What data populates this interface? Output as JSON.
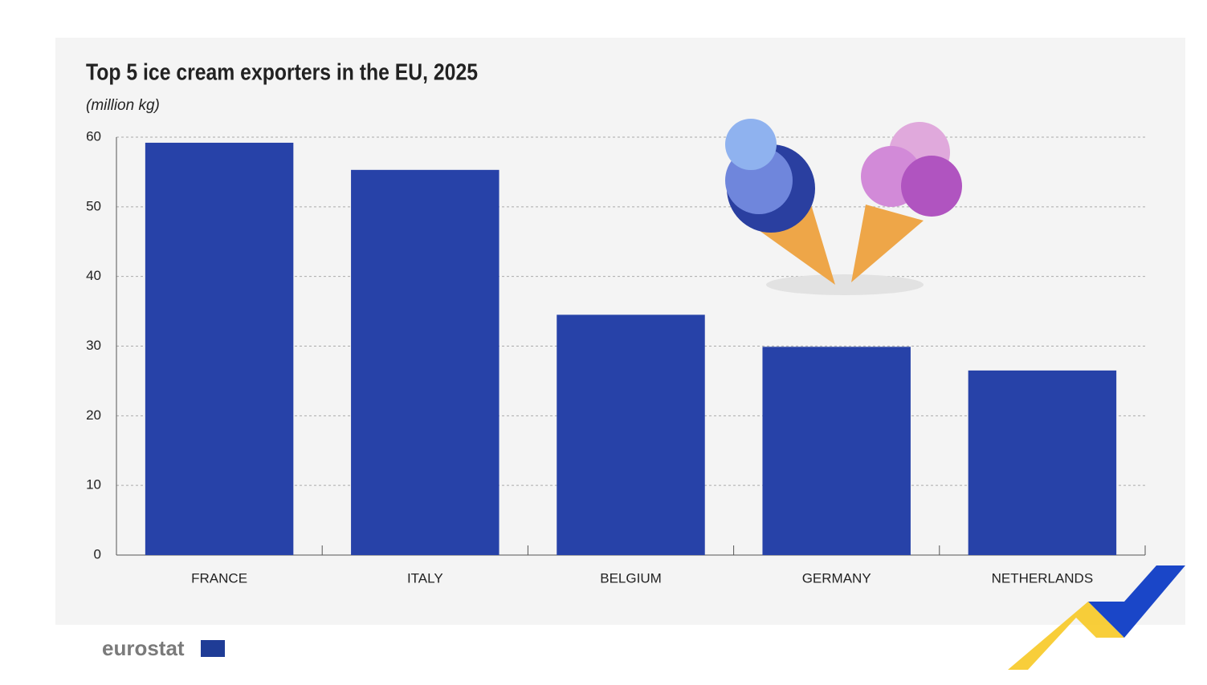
{
  "chart_data": {
    "type": "bar",
    "title": "Top 5 ice cream exporters in the EU, 2025",
    "subtitle": "(million kg)",
    "categories": [
      "FRANCE",
      "ITALY",
      "BELGIUM",
      "GERMANY",
      "NETHERLANDS"
    ],
    "values": [
      59.2,
      55.3,
      34.5,
      29.9,
      26.5
    ],
    "color": "#2742a8",
    "ylim": [
      0,
      60
    ],
    "yticks": [
      0,
      10,
      20,
      30,
      40,
      50,
      60
    ],
    "grid": true
  },
  "logo": "eurostat"
}
